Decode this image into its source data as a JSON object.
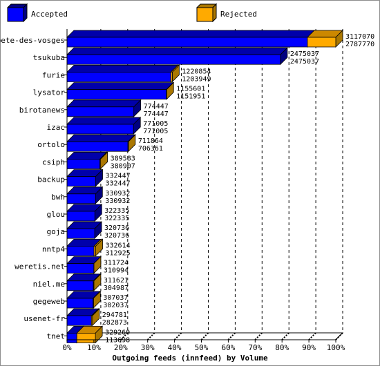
{
  "chart_data": {
    "type": "bar",
    "orientation": "horizontal",
    "stacked": true,
    "title": "",
    "xlabel": "Outgoing feeds (innfeed) by Volume",
    "ylabel": "",
    "xlim": [
      0,
      100
    ],
    "x_unit": "percent of largest total",
    "max_total": 3117070,
    "xticks": [
      "0%",
      "10%",
      "20%",
      "30%",
      "40%",
      "50%",
      "60%",
      "70%",
      "80%",
      "90%",
      "100%"
    ],
    "legend": {
      "position": "top",
      "items": [
        "Accepted",
        "Rejected"
      ]
    },
    "colors": {
      "accepted": "#0000ff",
      "rejected": "#ffaa00"
    },
    "categories": [
      "bete-des-vosges",
      "tsukuba",
      "furie",
      "lysator",
      "birotanews",
      "izac",
      "ortolo",
      "csiph",
      "backup",
      "bwh",
      "glou",
      "goja",
      "nntp4",
      "weretis.net",
      "niel.me",
      "gegeweb",
      "usenet-fr",
      "tnet"
    ],
    "offered": [
      3117070,
      2475037,
      1220854,
      1155601,
      774447,
      771005,
      711864,
      389583,
      332447,
      330932,
      322335,
      320736,
      332614,
      311724,
      311621,
      307037,
      294781,
      329260
    ],
    "accepted": [
      2787770,
      2475037,
      1203949,
      1151951,
      774447,
      771005,
      706361,
      380907,
      332447,
      330932,
      322335,
      320736,
      312925,
      310994,
      304987,
      302037,
      282873,
      113698
    ]
  }
}
